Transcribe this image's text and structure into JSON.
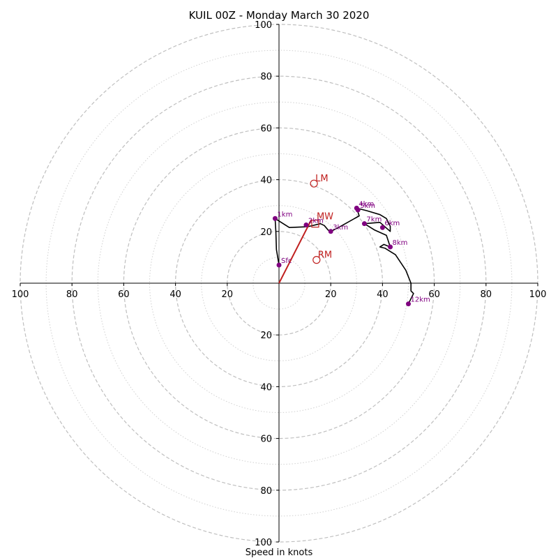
{
  "chart_data": {
    "type": "scatter",
    "title": "KUIL 00Z - Monday March 30 2020",
    "xlabel": "Speed in knots",
    "ylabel": "",
    "xlim": [
      -100,
      100
    ],
    "ylim": [
      -100,
      100
    ],
    "ring_major": [
      20,
      40,
      60,
      80,
      100
    ],
    "ring_minor": [
      10,
      30,
      50,
      70,
      90
    ],
    "tick_labels": [
      "100",
      "80",
      "60",
      "40",
      "20",
      "20",
      "40",
      "60",
      "80",
      "100"
    ],
    "grid": true,
    "colors": {
      "trace": "#000000",
      "height_points": "#800080",
      "storm_motion": "#c0201f",
      "grid": "#bfbfbf"
    },
    "trace": [
      [
        0,
        7
      ],
      [
        -1,
        13
      ],
      [
        -1.2,
        20
      ],
      [
        -1.5,
        25
      ],
      [
        4,
        21.5
      ],
      [
        11,
        21.8
      ],
      [
        16,
        23
      ],
      [
        17.5,
        22.3
      ],
      [
        19,
        20.5
      ],
      [
        20,
        20
      ],
      [
        23,
        21.5
      ],
      [
        31,
        26
      ],
      [
        30,
        29
      ],
      [
        34,
        28
      ],
      [
        39,
        26.5
      ],
      [
        41.5,
        25
      ],
      [
        43,
        22
      ],
      [
        43,
        20
      ],
      [
        39,
        23.5
      ],
      [
        33,
        23
      ],
      [
        37,
        20.5
      ],
      [
        41.5,
        18.5
      ],
      [
        43,
        14
      ],
      [
        40.5,
        15
      ],
      [
        39,
        14
      ],
      [
        41,
        13.5
      ],
      [
        45,
        11
      ],
      [
        49,
        5
      ],
      [
        51,
        0
      ],
      [
        51,
        -3
      ],
      [
        52,
        -4
      ],
      [
        50,
        -8
      ]
    ],
    "height_points": [
      {
        "label": "Sfc",
        "u": 0,
        "v": 7
      },
      {
        "label": "1km",
        "u": -1.5,
        "v": 25
      },
      {
        "label": "2km",
        "u": 10.5,
        "v": 22.5
      },
      {
        "label": "3km",
        "u": 20,
        "v": 20
      },
      {
        "label": "4km",
        "u": 30,
        "v": 29
      },
      {
        "label": "5km",
        "u": 30.5,
        "v": 28.3
      },
      {
        "label": "6km",
        "u": 40,
        "v": 21.5
      },
      {
        "label": "7km",
        "u": 33,
        "v": 23
      },
      {
        "label": "8km",
        "u": 43,
        "v": 14
      },
      {
        "label": "12km",
        "u": 50,
        "v": -8
      }
    ],
    "storm_motion": {
      "mean_wind": {
        "label": "MW",
        "u": 14,
        "v": 23
      },
      "left_mover": {
        "label": "LM",
        "u": 13.5,
        "v": 38.5
      },
      "right_mover": {
        "label": "RM",
        "u": 14.5,
        "v": 9
      },
      "shear_vector": {
        "from": [
          0,
          0
        ],
        "to": [
          12.5,
          24.5
        ]
      }
    }
  }
}
